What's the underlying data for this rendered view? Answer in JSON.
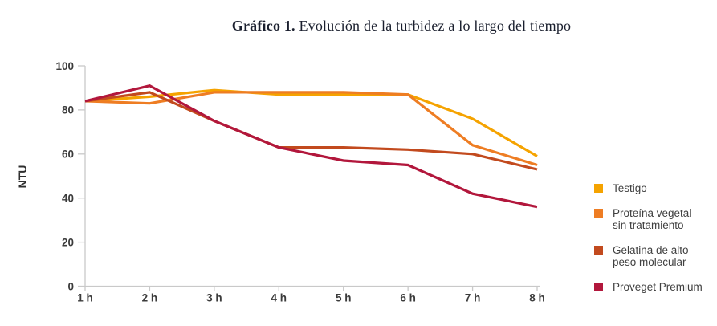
{
  "title": {
    "prefix": "Gráfico 1.",
    "text": "Evolución de la turbidez a lo largo del tiempo"
  },
  "colors": {
    "axis": "#c9c9c9",
    "tick_text": "#3b3b3b",
    "title_text": "#1a1f2e",
    "legend_text": "#404040"
  },
  "chart_data": {
    "type": "line",
    "title": "Gráfico 1. Evolución de la turbidez a lo largo del tiempo",
    "xlabel": "",
    "ylabel": "NTU",
    "x": [
      "1 h",
      "2 h",
      "3 h",
      "4 h",
      "5 h",
      "6 h",
      "7 h",
      "8 h"
    ],
    "ylim": [
      0,
      100
    ],
    "yticks": [
      0,
      20,
      40,
      60,
      80,
      100
    ],
    "grid": false,
    "legend_position": "right",
    "series": [
      {
        "name": "Testigo",
        "legend_label": "Testigo",
        "color": "#F5A300",
        "values": [
          84,
          86,
          89,
          87,
          87,
          87,
          76,
          59
        ]
      },
      {
        "name": "Proteína vegetal sin tratamiento",
        "legend_label": "Proteína vegetal\nsin tratamiento",
        "color": "#EE7D23",
        "values": [
          84,
          83,
          88,
          88,
          88,
          87,
          64,
          55
        ]
      },
      {
        "name": "Gelatina de alto peso molecular",
        "legend_label": "Gelatina de alto\npeso molecular",
        "color": "#C24A1E",
        "values": [
          84,
          88,
          75,
          63,
          63,
          62,
          60,
          53
        ]
      },
      {
        "name": "Proveget Premium",
        "legend_label": "Proveget Premium",
        "color": "#B2173C",
        "values": [
          84,
          91,
          75,
          63,
          57,
          55,
          42,
          36
        ]
      }
    ]
  }
}
